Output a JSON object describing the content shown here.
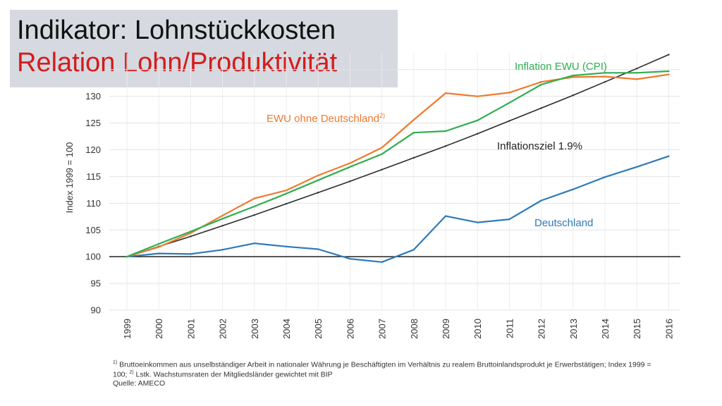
{
  "slide": {
    "title_line1": "Indikator: Lohnstückkosten",
    "title_line2": "Relation Lohn/Produktivität"
  },
  "footnotes": {
    "note1_marker": "1)",
    "note1_text_a": "Bruttoeinkommen aus unselbständiger Arbeit in nationaler Währung je Beschäftigten im Verhältnis zu realem Bruttoinlandsprodukt je Erwerbstätigen; Index 1999 =",
    "note1_text_b": "100;",
    "note2_marker": "2)",
    "note2_text": "Lstk. Wachstumsraten der Mitgliedsländer gewichtet mit BIP",
    "source": "Quelle: AMECO"
  },
  "chart_data": {
    "type": "line",
    "ylabel": "Index 1999 = 100",
    "xlabel": "",
    "ylim": [
      90,
      138
    ],
    "yticks": [
      90,
      95,
      100,
      105,
      110,
      115,
      120,
      125,
      130
    ],
    "x": [
      "1999",
      "2000",
      "2001",
      "2002",
      "2003",
      "2004",
      "2005",
      "2006",
      "2007",
      "2008",
      "2009",
      "2010",
      "2011",
      "2012",
      "2013",
      "2014",
      "2015",
      "2016"
    ],
    "grid": true,
    "reference_line": 100,
    "series": [
      {
        "name": "Inflation EWU (CPI)",
        "color": "#2fae4f",
        "values": [
          100,
          102.4,
          104.7,
          107.1,
          109.4,
          111.8,
          114.3,
          116.8,
          119.2,
          123.2,
          123.5,
          125.5,
          128.8,
          132.2,
          133.9,
          134.4,
          134.4,
          134.7
        ]
      },
      {
        "name": "EWU ohne Deutschland",
        "name_sup": "2)",
        "color": "#ee7a30",
        "values": [
          100,
          101.8,
          104.4,
          107.7,
          110.9,
          112.4,
          115.2,
          117.5,
          120.4,
          125.6,
          130.6,
          130.0,
          130.7,
          132.7,
          133.6,
          133.7,
          133.2,
          134.1
        ]
      },
      {
        "name": "Inflationsziel 1.9%",
        "color": "#2a2a2a",
        "values": [
          100,
          101.9,
          103.8,
          105.8,
          107.8,
          109.9,
          112.0,
          114.1,
          116.3,
          118.5,
          120.7,
          123.0,
          125.4,
          127.8,
          130.2,
          132.7,
          135.2,
          137.8
        ]
      },
      {
        "name": "Deutschland",
        "color": "#2f7ab8",
        "values": [
          100,
          100.6,
          100.5,
          101.3,
          102.5,
          101.9,
          101.4,
          99.6,
          99.0,
          101.3,
          107.6,
          106.4,
          107.0,
          110.5,
          112.6,
          114.9,
          116.8,
          118.8
        ]
      }
    ]
  }
}
